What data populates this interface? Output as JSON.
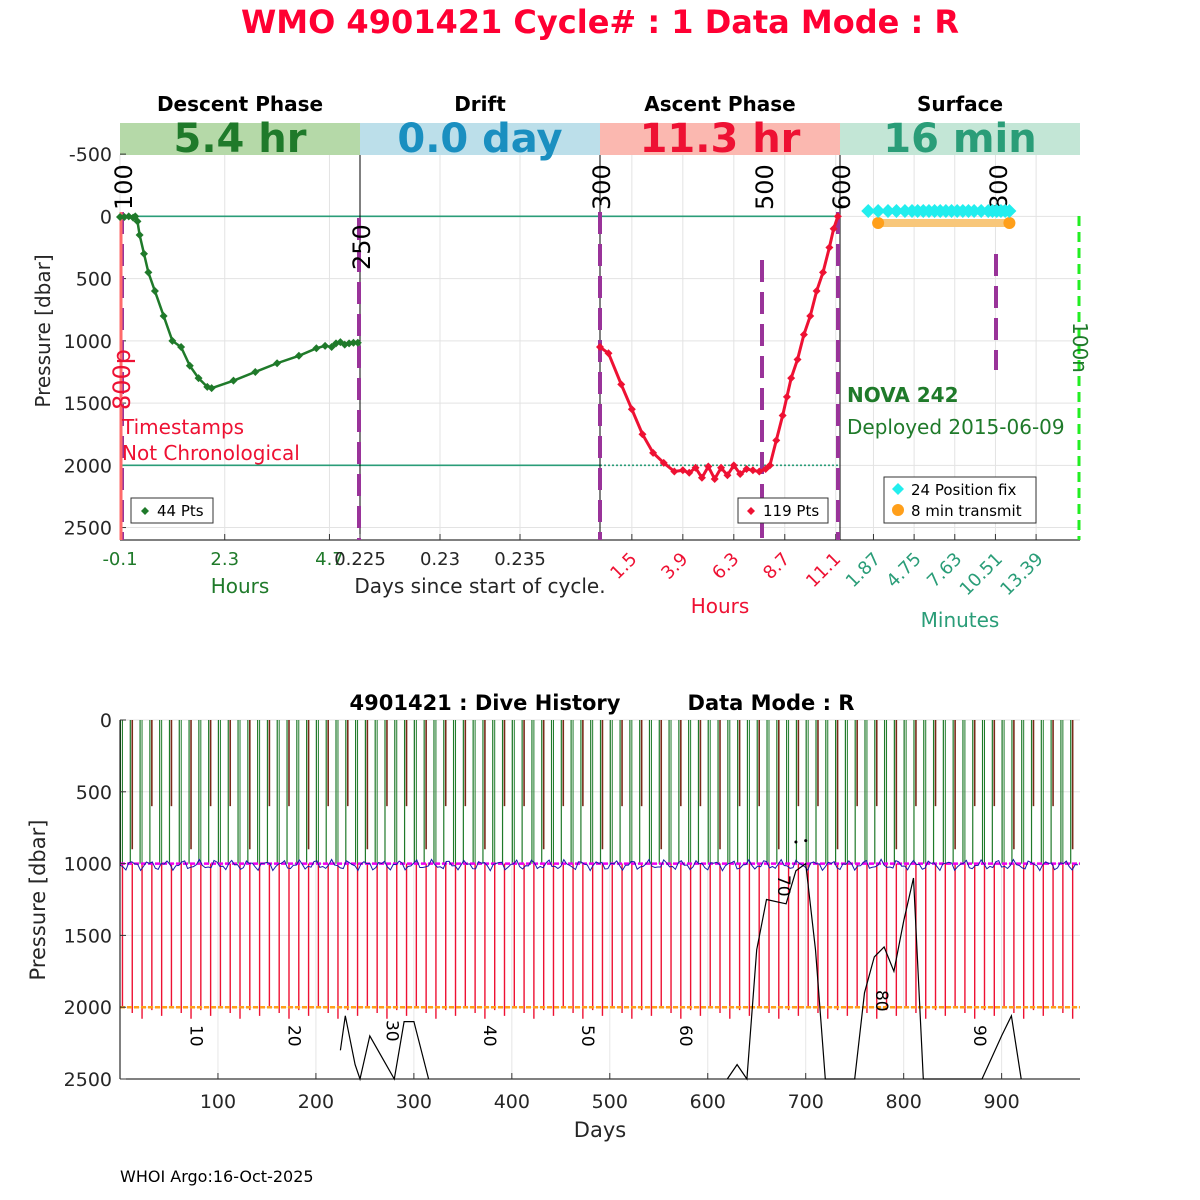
{
  "header": {
    "title": "WMO 4901421    Cycle# : 1    Data Mode : R",
    "title_color": "#ff0033"
  },
  "colors": {
    "descent": "#1f7a2a",
    "descent_band": "#b5d9a8",
    "drift_band": "#bcdfea",
    "drift_text": "#1a8fc0",
    "ascent": "#ee1133",
    "ascent_band": "#fbb8b0",
    "surface_band": "#c3e6d6",
    "surface_text": "#2a9d78",
    "purple": "#993399",
    "teal_line": "#2a9d78",
    "cyan": "#22eeee",
    "orange": "#ff9f1a",
    "green_dash": "#22ee22",
    "magenta": "#ee00ee",
    "brown": "#7a2a1a",
    "profile_blue": "#1a1aaa"
  },
  "chart_data": [
    {
      "type": "line",
      "panel": "Descent Phase",
      "header_label": "Descent Phase",
      "duration_label": "5.4 hr",
      "xlabel": "Hours",
      "xticks": [
        "-0.1",
        "2.3",
        "4.7"
      ],
      "xlim": [
        -0.1,
        5.4
      ],
      "ylabel": "Pressure [dbar]",
      "ylim": [
        2600,
        -750
      ],
      "yticks": [
        "-500",
        "0",
        "500",
        "1000",
        "1500",
        "2000",
        "2500"
      ],
      "points_hours": [
        -0.1,
        0.0,
        0.1,
        0.2,
        0.25,
        0.3,
        0.35,
        0.45,
        0.55,
        0.7,
        0.9,
        1.1,
        1.3,
        1.5,
        1.7,
        1.9,
        2.0,
        2.5,
        3.0,
        3.5,
        4.0,
        4.4,
        4.6,
        4.75,
        4.85,
        4.95,
        5.05,
        5.15,
        5.25,
        5.35
      ],
      "points_dbar": [
        5,
        5,
        0,
        10,
        0,
        40,
        150,
        300,
        450,
        600,
        800,
        1000,
        1050,
        1200,
        1300,
        1370,
        1380,
        1320,
        1250,
        1180,
        1120,
        1060,
        1040,
        1050,
        1020,
        1010,
        1030,
        1020,
        1015,
        1015
      ],
      "legend": "44 Pts",
      "rotated_labels": [
        "100",
        "800p"
      ],
      "annotation": [
        "Timestamps",
        "Not Chronological"
      ]
    },
    {
      "type": "line",
      "panel": "Drift",
      "header_label": "Drift",
      "duration_label": "0.0 day",
      "xlabel": "Days since start of cycle.",
      "xticks": [
        "0.225",
        "0.23",
        "0.235"
      ],
      "xlim": [
        0.225,
        0.24
      ],
      "rotated_labels": [
        "250"
      ]
    },
    {
      "type": "line",
      "panel": "Ascent Phase",
      "header_label": "Ascent Phase",
      "duration_label": "11.3 hr",
      "xlabel": "Hours",
      "xticks": [
        "1.5",
        "3.9",
        "6.3",
        "8.7",
        "11.1"
      ],
      "xlim": [
        0.0,
        11.3
      ],
      "points_hours": [
        0.0,
        0.4,
        1.0,
        1.5,
        2.0,
        2.5,
        3.0,
        3.5,
        3.9,
        4.2,
        4.5,
        4.8,
        5.1,
        5.4,
        5.7,
        6.0,
        6.3,
        6.6,
        6.9,
        7.2,
        7.5,
        7.8,
        8.0,
        8.3,
        8.6,
        8.8,
        9.0,
        9.3,
        9.6,
        9.9,
        10.2,
        10.5,
        10.8,
        11.0,
        11.2
      ],
      "points_dbar": [
        1050,
        1100,
        1350,
        1550,
        1750,
        1900,
        1980,
        2050,
        2040,
        2060,
        2020,
        2100,
        2010,
        2110,
        2020,
        2080,
        2000,
        2070,
        2030,
        2040,
        2050,
        2030,
        2000,
        1800,
        1600,
        1450,
        1300,
        1150,
        950,
        800,
        600,
        450,
        250,
        100,
        0
      ],
      "legend": "119 Pts",
      "rotated_labels": [
        "300",
        "500",
        "600"
      ]
    },
    {
      "type": "scatter",
      "panel": "Surface",
      "header_label": "Surface",
      "duration_label": "16 min",
      "xlabel": "Minutes",
      "xticks": [
        "1.87",
        "4.75",
        "7.63",
        "10.51",
        "13.39"
      ],
      "xlim": [
        -0.5,
        16.5
      ],
      "position_fix_minutes": [
        1.5,
        2.2,
        2.9,
        3.5,
        4.1,
        4.6,
        5.0,
        5.4,
        5.8,
        6.2,
        6.6,
        7.0,
        7.4,
        7.8,
        8.2,
        8.6,
        9.0,
        9.5,
        10.0,
        10.3,
        10.6,
        10.9,
        11.2,
        11.5
      ],
      "transmit_minutes": [
        2.2,
        11.5
      ],
      "legend": [
        "24 Position fix",
        "8 min transmit"
      ],
      "rotated_labels": [
        "800",
        "100n"
      ],
      "float_name": "NOVA 242",
      "deployed": "Deployed 2015-06-09"
    },
    {
      "type": "line",
      "panel": "Dive History",
      "title": "4901421 : Dive History",
      "mode_label": "Data Mode : R",
      "xlabel": "Days",
      "ylabel": "Pressure [dbar]",
      "xlim": [
        0,
        980
      ],
      "ylim": [
        2500,
        0
      ],
      "xticks": [
        "100",
        "200",
        "300",
        "400",
        "500",
        "600",
        "700",
        "800",
        "900"
      ],
      "yticks": [
        "0",
        "500",
        "1000",
        "1500",
        "2000",
        "2500"
      ],
      "park_pressure": 1000,
      "profile_pressure": 2000,
      "cycle_spacing_days": 10,
      "cycle_labels": [
        "10",
        "20",
        "30",
        "40",
        "50",
        "60",
        "70",
        "80",
        "90"
      ],
      "bathymetry_days": [
        225,
        230,
        240,
        245,
        255,
        280,
        290,
        300,
        315,
        620,
        630,
        640,
        650,
        660,
        680,
        690,
        700,
        710,
        720,
        750,
        760,
        770,
        780,
        790,
        800,
        810,
        820,
        880,
        890,
        900,
        910,
        920
      ],
      "bathymetry_dbar": [
        2300,
        2060,
        2400,
        2500,
        2200,
        2500,
        2100,
        2100,
        2500,
        2500,
        2400,
        2500,
        1600,
        1250,
        1280,
        1050,
        1000,
        1600,
        2500,
        2500,
        1900,
        1650,
        1580,
        1750,
        1400,
        1100,
        2500,
        2500,
        2350,
        2200,
        2060,
        2500
      ]
    }
  ],
  "footer": {
    "credit": "WHOI Argo:16-Oct-2025"
  }
}
